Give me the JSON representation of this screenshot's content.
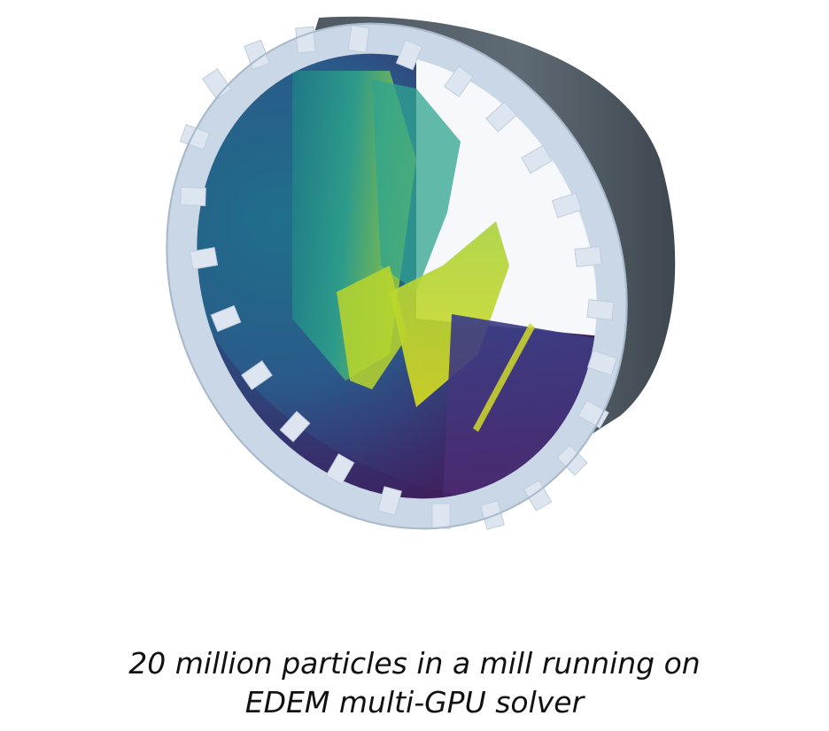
{
  "caption": {
    "line1": "20 million particles in a mill running on",
    "line2": "EDEM multi-GPU solver"
  },
  "colors": {
    "background": "#ffffff",
    "drum_shell": "#5b6670",
    "rim": "#c9d7e6",
    "liner_tooth": "#dde6f0",
    "particle_dark": "#3b1c5a",
    "particle_mid": "#25848e",
    "particle_light": "#c9d624",
    "caption_text": "#111111"
  },
  "icons": {
    "scene": "mill-particle-simulation-image"
  }
}
